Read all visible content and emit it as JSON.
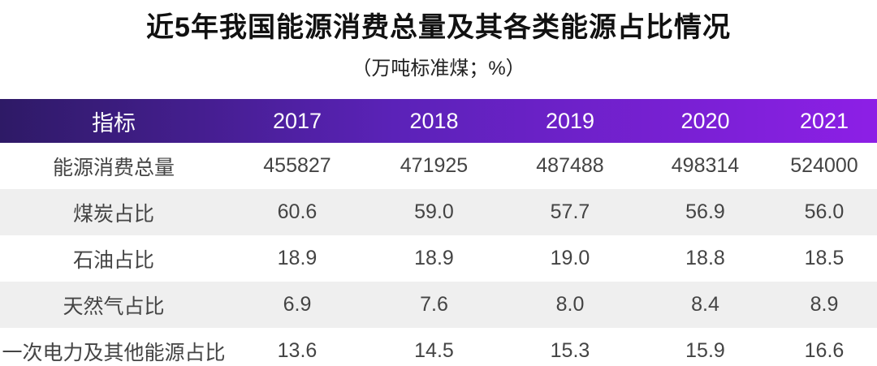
{
  "header": {
    "title": "近5年我国能源消费总量及其各类能源占比情况",
    "subtitle": "（万吨标准煤；%）"
  },
  "table": {
    "columns": [
      "指标",
      "2017",
      "2018",
      "2019",
      "2020",
      "2021"
    ],
    "rows": [
      [
        "能源消费总量",
        "455827",
        "471925",
        "487488",
        "498314",
        "524000"
      ],
      [
        "煤炭占比",
        "60.6",
        "59.0",
        "57.7",
        "56.9",
        "56.0"
      ],
      [
        "石油占比",
        "18.9",
        "18.9",
        "19.0",
        "18.8",
        "18.5"
      ],
      [
        "天然气占比",
        "6.9",
        "7.6",
        "8.0",
        "8.4",
        "8.9"
      ],
      [
        "一次电力及其他能源占比",
        "13.6",
        "14.5",
        "15.3",
        "15.9",
        "16.6"
      ]
    ]
  }
}
